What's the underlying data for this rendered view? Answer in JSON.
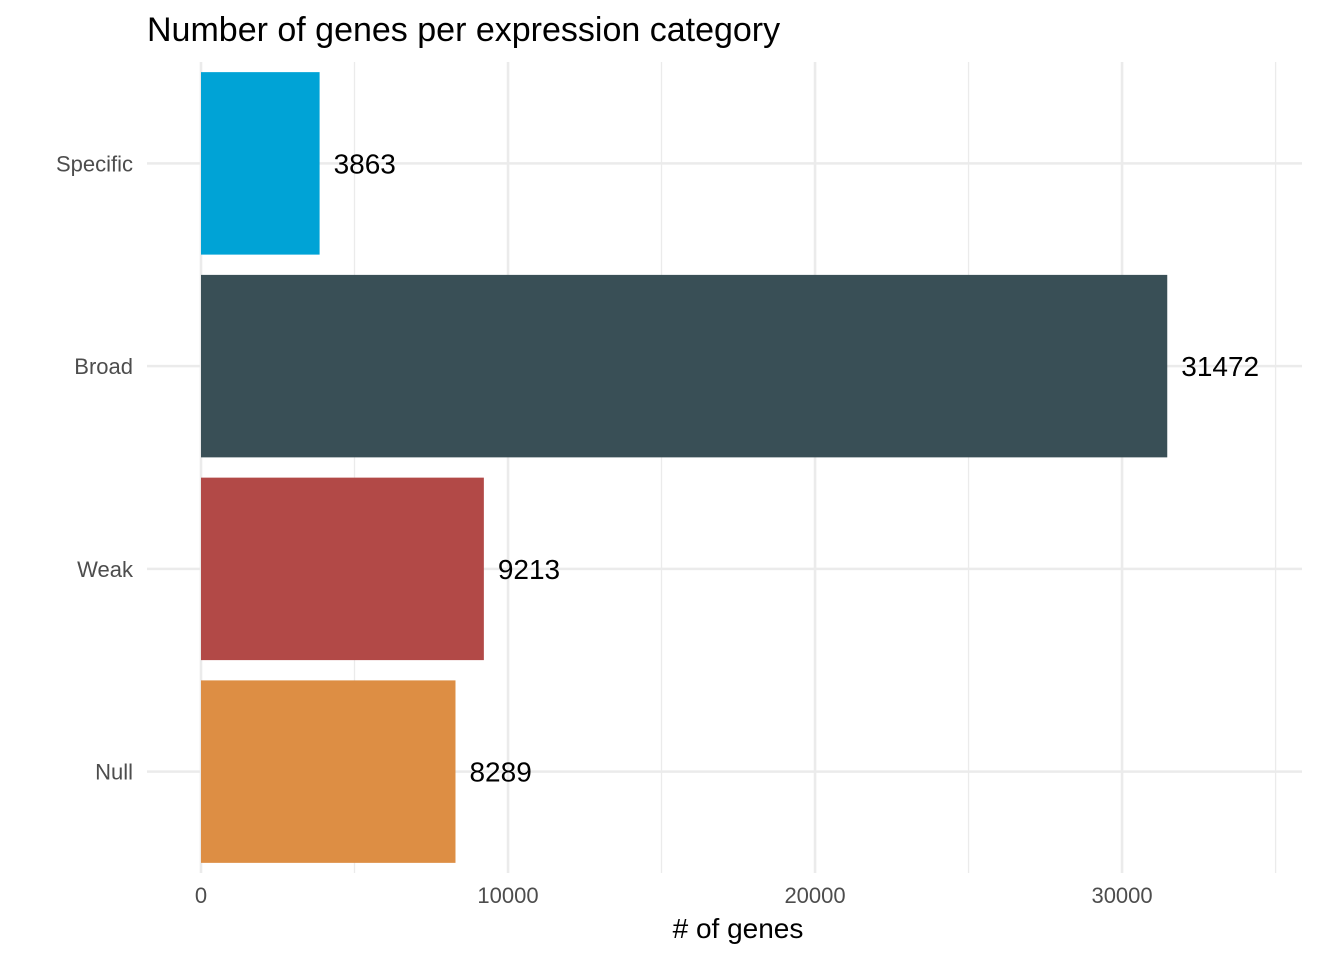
{
  "chart_data": {
    "type": "bar",
    "orientation": "horizontal",
    "title": "Number of genes per expression category",
    "xlabel": "# of genes",
    "ylabel": "",
    "categories": [
      "Null",
      "Weak",
      "Broad",
      "Specific"
    ],
    "values": [
      8289,
      9213,
      31472,
      3863
    ],
    "colors": [
      "#DD8E44",
      "#B24947",
      "#394F56",
      "#00A3D6"
    ],
    "data_labels": [
      "8289",
      "9213",
      "31472",
      "3863"
    ],
    "xlim": [
      0,
      35000
    ],
    "x_ticks": [
      0,
      10000,
      20000,
      30000
    ],
    "x_tick_labels": [
      "0",
      "10000",
      "20000",
      "30000"
    ],
    "x_minor_ticks": [
      5000,
      15000,
      25000,
      35000
    ],
    "grid": true,
    "legend": "none",
    "theme": "minimal"
  }
}
